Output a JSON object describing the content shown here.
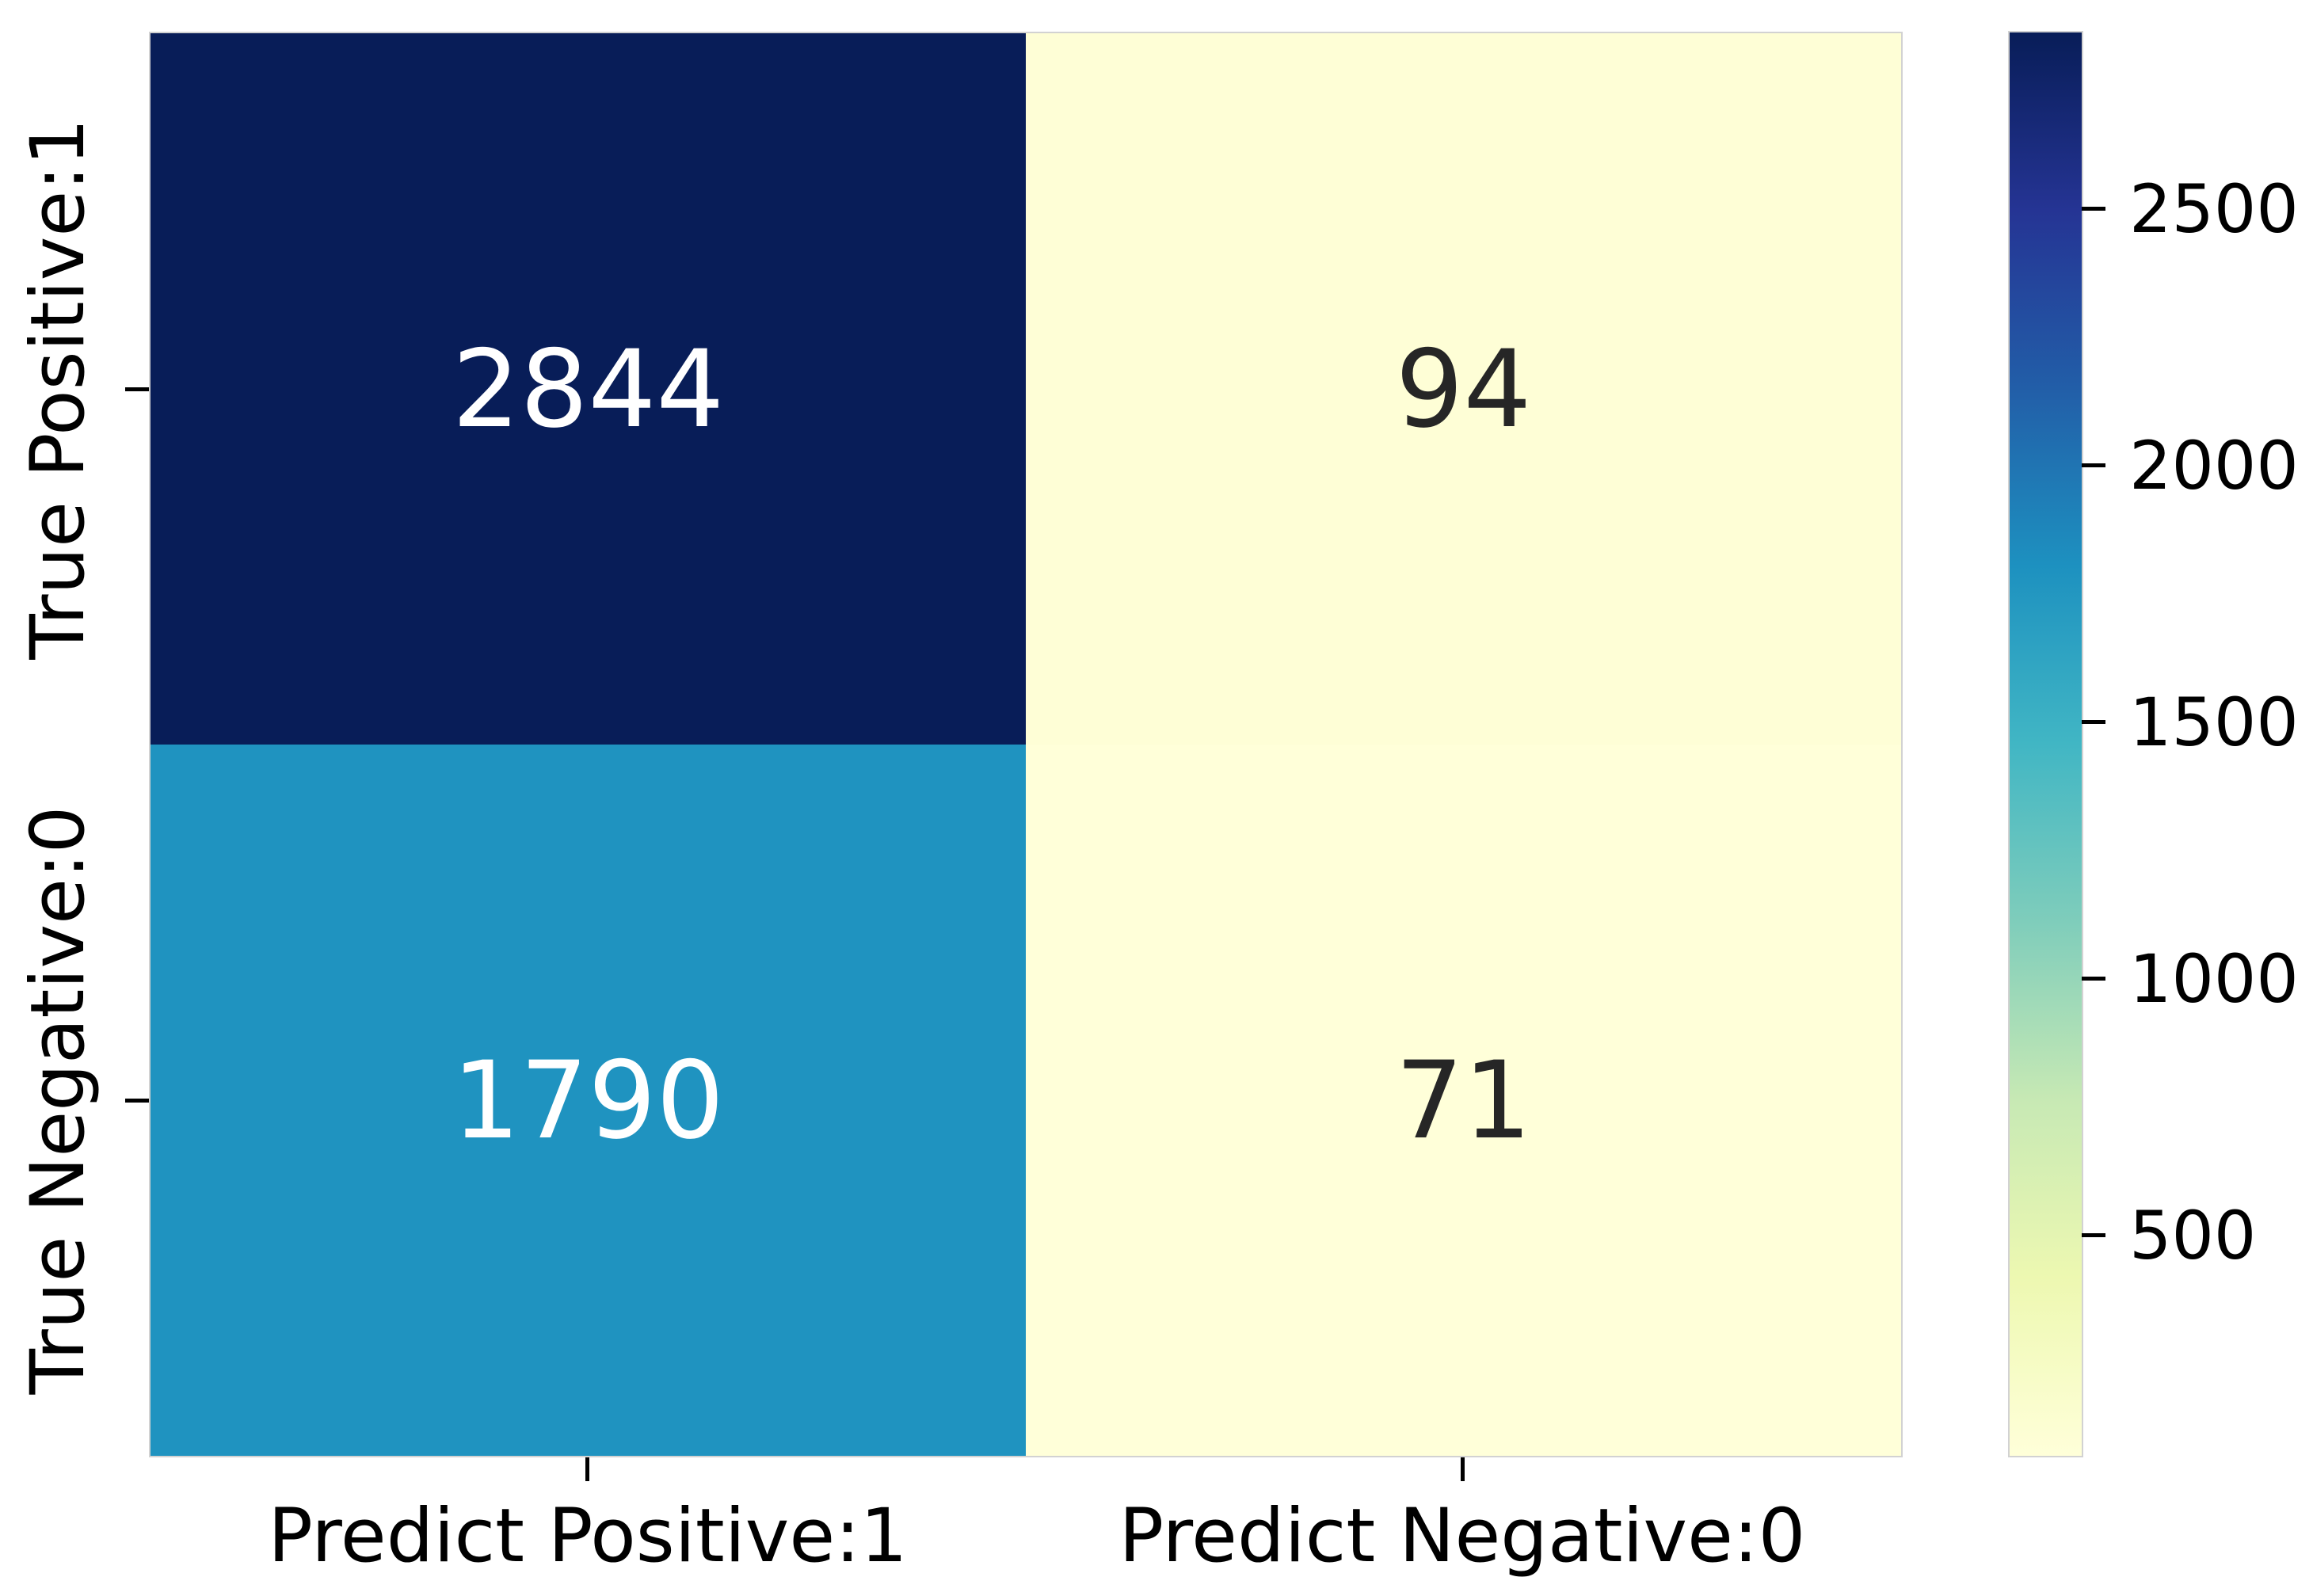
{
  "chart_data": {
    "type": "heatmap",
    "description": "Confusion matrix heatmap, seaborn-style, YlGnBu colormap",
    "x_categories": [
      "Predict Positive:1",
      "Predict Negative:0"
    ],
    "y_categories": [
      "True Positive:1",
      "True Negative:0"
    ],
    "values": [
      [
        2844,
        94
      ],
      [
        1790,
        71
      ]
    ],
    "rows": [
      {
        "label": "True Positive:1",
        "cells": [
          {
            "value": "2844",
            "bg": "#081d58",
            "fg": "#ffffff"
          },
          {
            "value": "94",
            "bg": "#fefed6",
            "fg": "#262626"
          }
        ]
      },
      {
        "label": "True Negative:0",
        "cells": [
          {
            "value": "1790",
            "bg": "#1f93c0",
            "fg": "#ffffff"
          },
          {
            "value": "71",
            "bg": "#ffffd9",
            "fg": "#262626"
          }
        ]
      }
    ],
    "grid": false,
    "legend": false,
    "colorbar": {
      "position": "right",
      "vmin": 71,
      "vmax": 2844,
      "colormap": "YlGnBu",
      "ticks": [
        "500",
        "1000",
        "1500",
        "2000",
        "2500"
      ],
      "stops": [
        "#ffffd9",
        "#edf8b1",
        "#c7e9b4",
        "#7fcdbb",
        "#41b6c4",
        "#1d91c0",
        "#225ea8",
        "#253494",
        "#081d58"
      ]
    }
  }
}
